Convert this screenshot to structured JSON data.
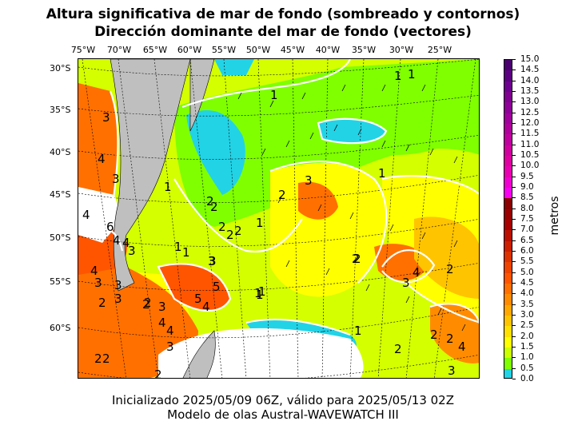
{
  "title": {
    "line1": "Altura significativa de mar de fondo (sombreado y contornos)",
    "line2": "Dirección dominante del mar de fondo (vectores)"
  },
  "lon_labels": [
    "75°W",
    "70°W",
    "65°W",
    "60°W",
    "55°W",
    "50°W",
    "45°W",
    "40°W",
    "35°W",
    "30°W",
    "25°W"
  ],
  "lat_labels": [
    "30°S",
    "35°S",
    "40°S",
    "45°S",
    "50°S",
    "55°S",
    "60°S"
  ],
  "colorbar": {
    "label": "metros",
    "ticks": [
      "15.0",
      "14.5",
      "14.0",
      "13.5",
      "13.0",
      "12.5",
      "12.0",
      "11.5",
      "11.0",
      "10.5",
      "10.0",
      "9.5",
      "9.0",
      "8.5",
      "8.0",
      "7.5",
      "7.0",
      "6.5",
      "6.0",
      "5.5",
      "5.0",
      "4.5",
      "4.0",
      "3.5",
      "3.0",
      "2.5",
      "2.0",
      "1.5",
      "1.0",
      "0.5",
      "0.0"
    ],
    "colors": [
      "#4b0070",
      "#5c0082",
      "#6e0090",
      "#800090",
      "#8f0098",
      "#a0009c",
      "#b0009c",
      "#c0009e",
      "#d0009e",
      "#de00a0",
      "#e800b0",
      "#f000d0",
      "#f800f0",
      "#8b0000",
      "#9a0000",
      "#a80000",
      "#bb1000",
      "#cc2000",
      "#dd3300",
      "#ee4400",
      "#ff5500",
      "#ff7000",
      "#ff8c00",
      "#ffa800",
      "#ffc400",
      "#ffe000",
      "#ffff00",
      "#ccff00",
      "#7fff00",
      "#22d3e6"
    ],
    "boundary_note_colors": {
      "swell_max": "#4b0070",
      "low": "#22d3e6",
      "land": "#bfbfbf"
    }
  },
  "contour_labels": [
    "1",
    "1",
    "1",
    "3",
    "1",
    "4",
    "3",
    "2",
    "3",
    "2",
    "1",
    "2",
    "1",
    "2",
    "3",
    "2",
    "2",
    "4",
    "6",
    "4",
    "4",
    "3",
    "1",
    "2",
    "1",
    "3",
    "4",
    "3",
    "3",
    "5",
    "5",
    "4",
    "3",
    "2",
    "3",
    "4",
    "2",
    "1",
    "3",
    "4",
    "2",
    "2",
    "4",
    "2",
    "3",
    "2",
    "2",
    "2",
    "1",
    "1",
    "1",
    "2",
    "2",
    "4",
    "3",
    "2"
  ],
  "footer": {
    "line1": "Inicializado 2025/05/09 06Z, válido para 2025/05/13 02Z",
    "line2": "Modelo de olas Austral-WAVEWATCH III"
  }
}
